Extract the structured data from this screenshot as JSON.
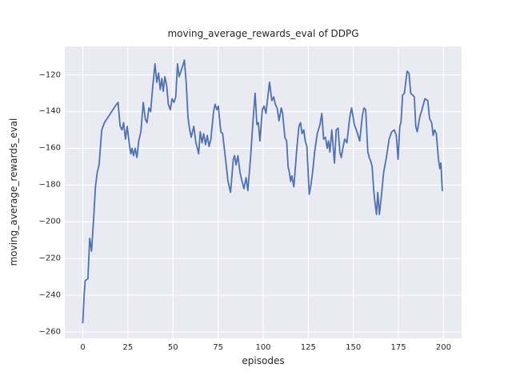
{
  "chart_data": {
    "type": "line",
    "title": "moving_average_rewards_eval of DDPG",
    "xlabel": "episodes",
    "ylabel": "moving_average_rewards_eval",
    "x_ticks": [
      0,
      25,
      50,
      75,
      100,
      125,
      150,
      175,
      200
    ],
    "x_tick_labels": [
      "0",
      "25",
      "50",
      "75",
      "100",
      "125",
      "150",
      "175",
      "200"
    ],
    "y_ticks": [
      -120,
      -140,
      -160,
      -180,
      -200,
      -220,
      -240,
      -260
    ],
    "y_tick_labels": [
      "−120",
      "−140",
      "−160",
      "−180",
      "−200",
      "−220",
      "−240",
      "−260"
    ],
    "xlim": [
      -10,
      210
    ],
    "ylim": [
      -263.5,
      -104.5
    ],
    "grid": true,
    "legend": false,
    "style": "seaborn-darkgrid",
    "colors": {
      "line": "#4c72b0",
      "axes_background": "#eaeaf2",
      "gridline": "#ffffff",
      "text": "#262626",
      "figure_background": "#ffffff"
    },
    "series": [
      {
        "name": "moving_average_rewards_eval",
        "points": [
          [
            0,
            -255
          ],
          [
            0.8,
            -239
          ],
          [
            1.3,
            -232
          ],
          [
            2.8,
            -231
          ],
          [
            3.8,
            -209
          ],
          [
            4.8,
            -216
          ],
          [
            6,
            -198
          ],
          [
            7,
            -181
          ],
          [
            8,
            -173
          ],
          [
            9,
            -169
          ],
          [
            10.5,
            -150
          ],
          [
            12,
            -146
          ],
          [
            14,
            -143
          ],
          [
            16,
            -140
          ],
          [
            18,
            -137
          ],
          [
            19.5,
            -135
          ],
          [
            20.7,
            -148
          ],
          [
            21.7,
            -150
          ],
          [
            22.6,
            -146
          ],
          [
            23.6,
            -155
          ],
          [
            24.6,
            -148
          ],
          [
            25.8,
            -158
          ],
          [
            26.6,
            -163
          ],
          [
            27.3,
            -160
          ],
          [
            28.1,
            -164
          ],
          [
            29,
            -160
          ],
          [
            30,
            -165
          ],
          [
            31,
            -156
          ],
          [
            32.2,
            -151
          ],
          [
            33.5,
            -135
          ],
          [
            34.6,
            -144
          ],
          [
            35.6,
            -146
          ],
          [
            36.6,
            -138
          ],
          [
            37.6,
            -140
          ],
          [
            38.6,
            -128
          ],
          [
            40,
            -114
          ],
          [
            41,
            -124
          ],
          [
            42,
            -119
          ],
          [
            42.9,
            -128
          ],
          [
            43.8,
            -122
          ],
          [
            44.6,
            -129
          ],
          [
            45.5,
            -121
          ],
          [
            46.5,
            -126
          ],
          [
            47.4,
            -136
          ],
          [
            48.5,
            -139
          ],
          [
            49.5,
            -133
          ],
          [
            50.5,
            -135
          ],
          [
            51.5,
            -132
          ],
          [
            52.5,
            -114
          ],
          [
            53.4,
            -121
          ],
          [
            54.4,
            -118
          ],
          [
            55.4,
            -115
          ],
          [
            56.3,
            -112
          ],
          [
            57.3,
            -124
          ],
          [
            58.3,
            -143
          ],
          [
            59.1,
            -149
          ],
          [
            60.1,
            -154
          ],
          [
            61.5,
            -148
          ],
          [
            62.7,
            -157
          ],
          [
            63.5,
            -160
          ],
          [
            64.2,
            -163
          ],
          [
            65.1,
            -151
          ],
          [
            66.1,
            -157
          ],
          [
            67,
            -152
          ],
          [
            68,
            -158
          ],
          [
            69,
            -153
          ],
          [
            70,
            -159
          ],
          [
            71,
            -155
          ],
          [
            72.5,
            -140
          ],
          [
            73.3,
            -136
          ],
          [
            74.3,
            -139
          ],
          [
            75.1,
            -137
          ],
          [
            76.5,
            -151
          ],
          [
            77.5,
            -152
          ],
          [
            79,
            -165
          ],
          [
            80.5,
            -178
          ],
          [
            81.9,
            -184
          ],
          [
            83.4,
            -166
          ],
          [
            84.1,
            -164
          ],
          [
            84.9,
            -169
          ],
          [
            86,
            -164
          ],
          [
            87.1,
            -173
          ],
          [
            88.5,
            -179
          ],
          [
            89.3,
            -182
          ],
          [
            90.5,
            -176
          ],
          [
            91.5,
            -183
          ],
          [
            93,
            -165
          ],
          [
            94.5,
            -143
          ],
          [
            95.5,
            -130
          ],
          [
            96.5,
            -147
          ],
          [
            97.3,
            -146
          ],
          [
            98.2,
            -156
          ],
          [
            99.5,
            -139
          ],
          [
            100.5,
            -137
          ],
          [
            101.5,
            -141
          ],
          [
            103.5,
            -124
          ],
          [
            104.8,
            -134
          ],
          [
            105.8,
            -132
          ],
          [
            106.7,
            -136
          ],
          [
            107.7,
            -138
          ],
          [
            108.8,
            -145
          ],
          [
            110,
            -138
          ],
          [
            110.8,
            -141
          ],
          [
            112,
            -154
          ],
          [
            113,
            -156
          ],
          [
            113.8,
            -170
          ],
          [
            114.5,
            -173
          ],
          [
            115.2,
            -178
          ],
          [
            115.9,
            -175
          ],
          [
            117,
            -181
          ],
          [
            118.5,
            -162
          ],
          [
            119.8,
            -148
          ],
          [
            120.7,
            -146
          ],
          [
            121.5,
            -152
          ],
          [
            122.5,
            -150
          ],
          [
            123.3,
            -156
          ],
          [
            124.2,
            -159
          ],
          [
            125.5,
            -185
          ],
          [
            126.5,
            -180
          ],
          [
            127.5,
            -172
          ],
          [
            128.5,
            -162
          ],
          [
            130,
            -152
          ],
          [
            131.5,
            -147
          ],
          [
            132.5,
            -141
          ],
          [
            133.5,
            -155
          ],
          [
            134.5,
            -154
          ],
          [
            135.5,
            -160
          ],
          [
            136.2,
            -156
          ],
          [
            137,
            -162
          ],
          [
            138,
            -150
          ],
          [
            139.5,
            -168
          ],
          [
            140.5,
            -150
          ],
          [
            141.5,
            -149
          ],
          [
            142.5,
            -162
          ],
          [
            143.3,
            -165
          ],
          [
            144.3,
            -159
          ],
          [
            145.2,
            -155
          ],
          [
            146.4,
            -157
          ],
          [
            148,
            -143
          ],
          [
            149,
            -138
          ],
          [
            150.5,
            -147
          ],
          [
            152,
            -151
          ],
          [
            153.5,
            -156
          ],
          [
            155,
            -142
          ],
          [
            155.9,
            -138
          ],
          [
            156.8,
            -139
          ],
          [
            158,
            -162
          ],
          [
            158.8,
            -165
          ],
          [
            159.6,
            -167
          ],
          [
            160.4,
            -170
          ],
          [
            161.2,
            -182
          ],
          [
            161.8,
            -188
          ],
          [
            162.8,
            -196
          ],
          [
            163.5,
            -184
          ],
          [
            164.4,
            -196
          ],
          [
            165.5,
            -186
          ],
          [
            166.8,
            -173
          ],
          [
            168.3,
            -165
          ],
          [
            169.8,
            -155
          ],
          [
            171.3,
            -151
          ],
          [
            172.7,
            -150
          ],
          [
            173.8,
            -153
          ],
          [
            174.8,
            -166
          ],
          [
            175.7,
            -148
          ],
          [
            176.4,
            -146
          ],
          [
            177.3,
            -131
          ],
          [
            178.3,
            -130
          ],
          [
            179.8,
            -118
          ],
          [
            180.8,
            -119
          ],
          [
            181.8,
            -130
          ],
          [
            182.8,
            -131
          ],
          [
            183.8,
            -132
          ],
          [
            184.6,
            -148
          ],
          [
            185.4,
            -151
          ],
          [
            186.8,
            -143
          ],
          [
            188,
            -139
          ],
          [
            189.7,
            -133
          ],
          [
            191.2,
            -134
          ],
          [
            192.3,
            -144
          ],
          [
            193.4,
            -146
          ],
          [
            194.2,
            -153
          ],
          [
            195,
            -150
          ],
          [
            196,
            -152
          ],
          [
            197.2,
            -166
          ],
          [
            197.9,
            -171
          ],
          [
            198.5,
            -168
          ],
          [
            199.3,
            -183
          ]
        ]
      }
    ],
    "layout": {
      "axes_left": 81,
      "axes_top": 58,
      "axes_width": 496,
      "axes_height": 365
    }
  }
}
